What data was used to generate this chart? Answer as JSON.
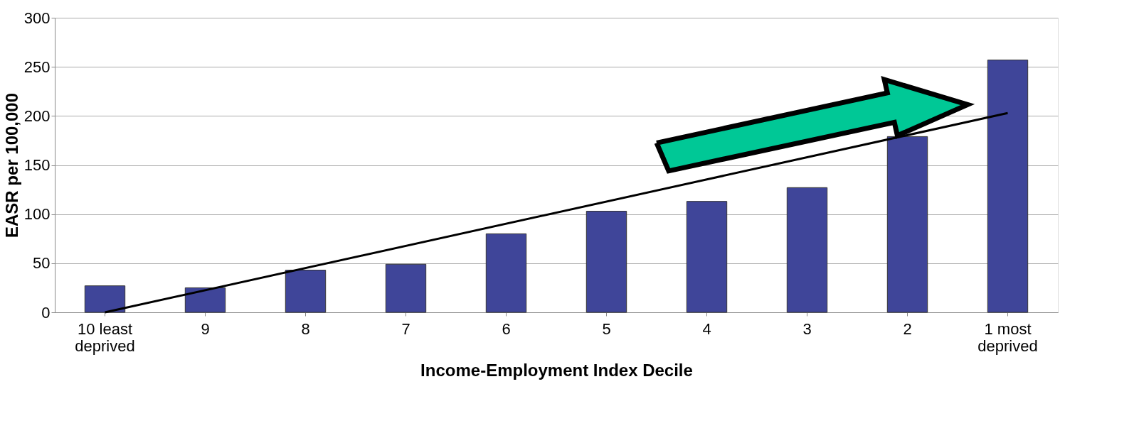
{
  "chart_data": {
    "type": "bar",
    "xlabel": "Income-Employment Index Decile",
    "ylabel": "EASR per 100,000",
    "categories": [
      "10 least\ndeprived",
      "9",
      "8",
      "7",
      "6",
      "5",
      "4",
      "3",
      "2",
      "1 most\ndeprived"
    ],
    "series": [
      {
        "color": "#3f4599",
        "values": [
          27,
          25,
          43,
          49,
          80,
          103,
          113,
          127,
          179,
          257
        ]
      },
      {
        "type": "line",
        "color": "#000000",
        "x": [
          "10 least\ndeprived",
          "1 most\ndeprived"
        ],
        "values": [
          0,
          203
        ]
      }
    ],
    "ylim": [
      0,
      300
    ],
    "yticks": [
      0,
      50,
      100,
      150,
      200,
      250,
      300
    ],
    "grid": "y"
  }
}
